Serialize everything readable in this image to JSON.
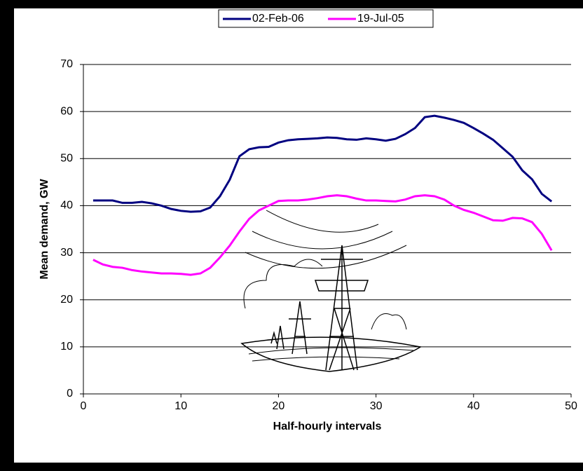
{
  "chart_data": {
    "type": "line",
    "x_label": "Half-hourly intervals",
    "y_label": "Mean demand, GW",
    "x": [
      1,
      2,
      3,
      4,
      5,
      6,
      7,
      8,
      9,
      10,
      11,
      12,
      13,
      14,
      15,
      16,
      17,
      18,
      19,
      20,
      21,
      22,
      23,
      24,
      25,
      26,
      27,
      28,
      29,
      30,
      31,
      32,
      33,
      34,
      35,
      36,
      37,
      38,
      39,
      40,
      41,
      42,
      43,
      44,
      45,
      46,
      47,
      48
    ],
    "series": [
      {
        "name": "02-Feb-06",
        "color": "#000080",
        "values": [
          41.1,
          41.1,
          41.1,
          40.6,
          40.6,
          40.8,
          40.5,
          40.0,
          39.3,
          38.9,
          38.7,
          38.8,
          39.6,
          42.0,
          45.5,
          50.5,
          52.0,
          52.4,
          52.5,
          53.4,
          53.9,
          54.1,
          54.2,
          54.3,
          54.5,
          54.4,
          54.1,
          54.0,
          54.3,
          54.1,
          53.8,
          54.2,
          55.2,
          56.5,
          58.8,
          59.1,
          58.7,
          58.2,
          57.6,
          56.5,
          55.3,
          54.0,
          52.2,
          50.4,
          47.5,
          45.6,
          42.5,
          40.9
        ]
      },
      {
        "name": "19-Jul-05",
        "color": "#ff00ff",
        "values": [
          28.5,
          27.5,
          27.0,
          26.8,
          26.3,
          26.0,
          25.8,
          25.6,
          25.6,
          25.5,
          25.3,
          25.6,
          26.8,
          29.0,
          31.5,
          34.5,
          37.2,
          39.0,
          40.0,
          41.0,
          41.1,
          41.1,
          41.3,
          41.6,
          42.0,
          42.2,
          42.0,
          41.5,
          41.1,
          41.1,
          41.0,
          40.9,
          41.3,
          42.0,
          42.2,
          42.0,
          41.3,
          40.0,
          39.1,
          38.5,
          37.7,
          36.9,
          36.8,
          37.4,
          37.3,
          36.5,
          34.0,
          30.5
        ]
      }
    ],
    "xlim": [
      0,
      50
    ],
    "xticks": [
      0,
      10,
      20,
      30,
      40,
      50
    ],
    "ylim": [
      0,
      70
    ],
    "yticks": [
      0,
      10,
      20,
      30,
      40,
      50,
      60,
      70
    ],
    "grid": true,
    "legend": "top"
  }
}
